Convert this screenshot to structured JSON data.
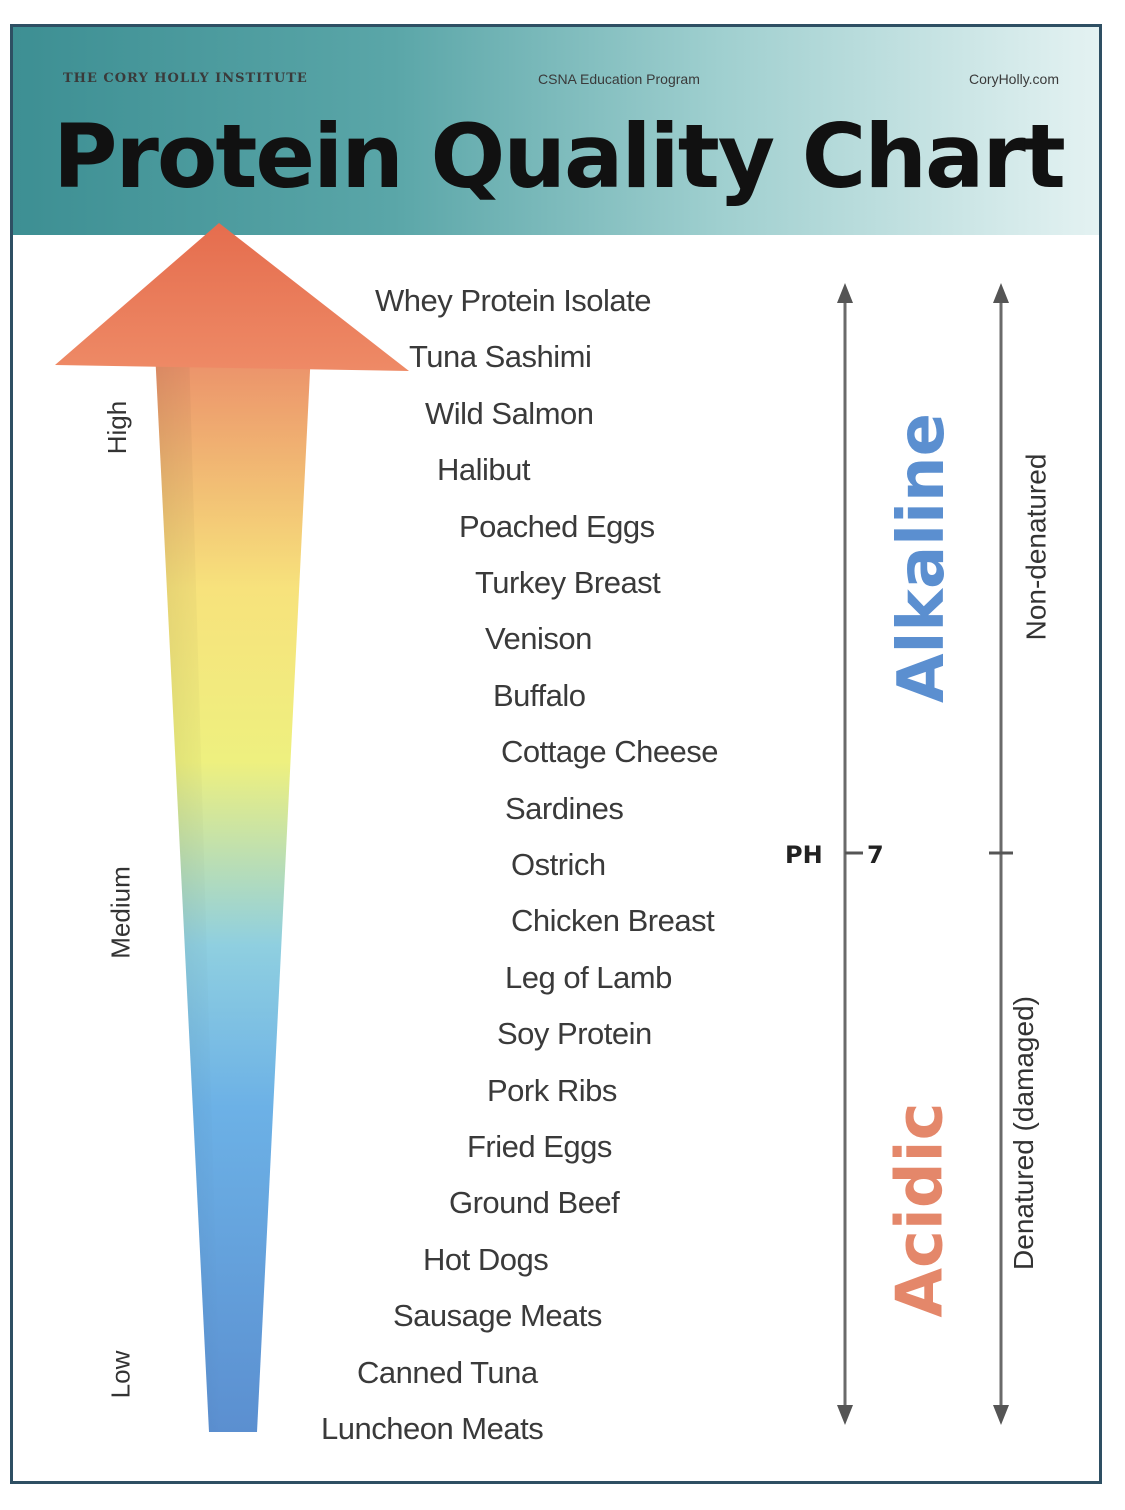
{
  "header": {
    "institute": "THE CORY HOLLY INSTITUTE",
    "program": "CSNA Education Program",
    "site": "CoryHolly.com",
    "title": "Protein Quality Chart"
  },
  "scale": {
    "high": "High",
    "medium": "Medium",
    "low": "Low",
    "colors": {
      "top": "#e8805f",
      "yellow": "#f6e27a",
      "middle": "#7cc3e6",
      "bottom": "#5b8fd0"
    }
  },
  "items": [
    "Whey Protein Isolate",
    "Tuna Sashimi",
    "Wild Salmon",
    "Halibut",
    "Poached Eggs",
    "Turkey Breast",
    "Venison",
    "Buffalo",
    "Cottage Cheese",
    "Sardines",
    "Ostrich",
    "Chicken Breast",
    "Leg of Lamb",
    "Soy Protein",
    "Pork Ribs",
    "Fried Eggs",
    "Ground Beef",
    "Hot Dogs",
    "Sausage Meats",
    "Canned Tuna",
    "Luncheon Meats"
  ],
  "ph_axis": {
    "alkaline": "Alkaline",
    "acidic": "Acidic",
    "ph_label": "PH",
    "ph_value": "7",
    "alkaline_color": "#5b8fd0",
    "acidic_color": "#e4876a"
  },
  "denature_axis": {
    "top": "Non-denatured",
    "bottom": "Denatured (damaged)"
  }
}
